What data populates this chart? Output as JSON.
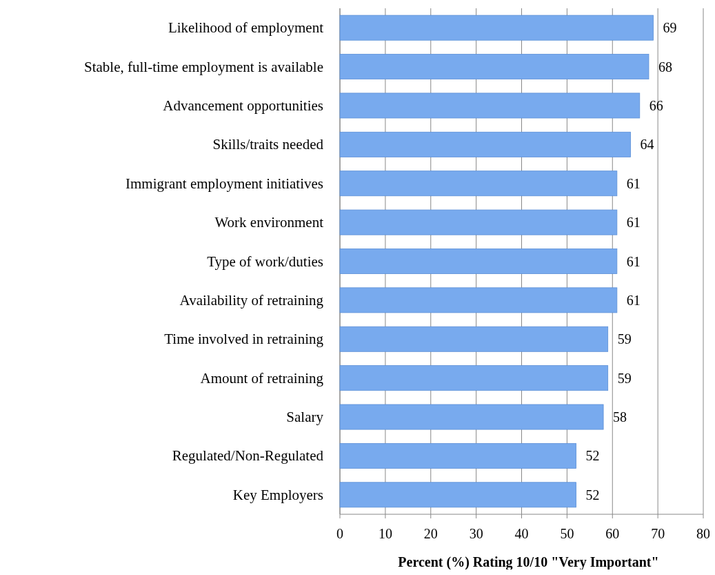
{
  "chart_data": {
    "type": "bar",
    "orientation": "horizontal",
    "categories": [
      "Likelihood of employment",
      "Stable, full-time employment is available",
      "Advancement opportunities",
      "Skills/traits needed",
      "Immigrant employment initiatives",
      "Work environment",
      "Type of work/duties",
      "Availability of retraining",
      "Time involved in retraining",
      "Amount of retraining",
      "Salary",
      "Regulated/Non-Regulated",
      "Key Employers"
    ],
    "values": [
      69,
      68,
      66,
      64,
      61,
      61,
      61,
      61,
      59,
      59,
      58,
      52,
      52
    ],
    "color": "#78aaee",
    "xlim": [
      0,
      80
    ],
    "xticks": [
      0,
      10,
      20,
      30,
      40,
      50,
      60,
      70,
      80
    ],
    "xlabel": "Percent (%) Rating 10/10 \"Very Important\"",
    "grid": "x",
    "data_labels": true
  }
}
